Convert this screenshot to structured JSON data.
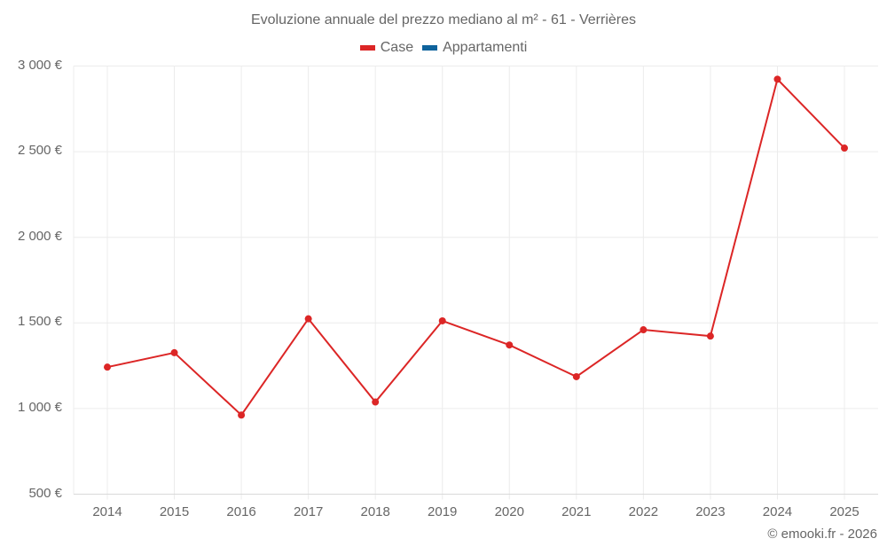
{
  "title": "Evoluzione annuale del prezzo mediano al m² - 61 - Verrières",
  "legend": [
    {
      "label": "Case",
      "color": "#dc2626"
    },
    {
      "label": "Appartamenti",
      "color": "#0e639c"
    }
  ],
  "credit": "© emooki.fr - 2026",
  "yticks": [
    "3 000 €",
    "2 500 €",
    "2 000 €",
    "1 500 €",
    "1 000 €",
    "500 €"
  ],
  "xticks": [
    "2014",
    "2015",
    "2016",
    "2017",
    "2018",
    "2019",
    "2020",
    "2021",
    "2022",
    "2023",
    "2024",
    "2025"
  ],
  "chart_data": {
    "type": "line",
    "title": "Evoluzione annuale del prezzo mediano al m² - 61 - Verrières",
    "xlabel": "",
    "ylabel": "",
    "x": [
      2014,
      2015,
      2016,
      2017,
      2018,
      2019,
      2020,
      2021,
      2022,
      2023,
      2024,
      2025
    ],
    "series": [
      {
        "name": "Case",
        "color": "#dc2626",
        "values": [
          1242,
          1326,
          962,
          1524,
          1038,
          1512,
          1371,
          1186,
          1460,
          1423,
          2923,
          2521
        ]
      },
      {
        "name": "Appartamenti",
        "color": "#0e639c",
        "values": []
      }
    ],
    "ylim": [
      500,
      3000
    ],
    "yticks": [
      500,
      1000,
      1500,
      2000,
      2500,
      3000
    ],
    "grid": true,
    "legend_position": "top"
  }
}
